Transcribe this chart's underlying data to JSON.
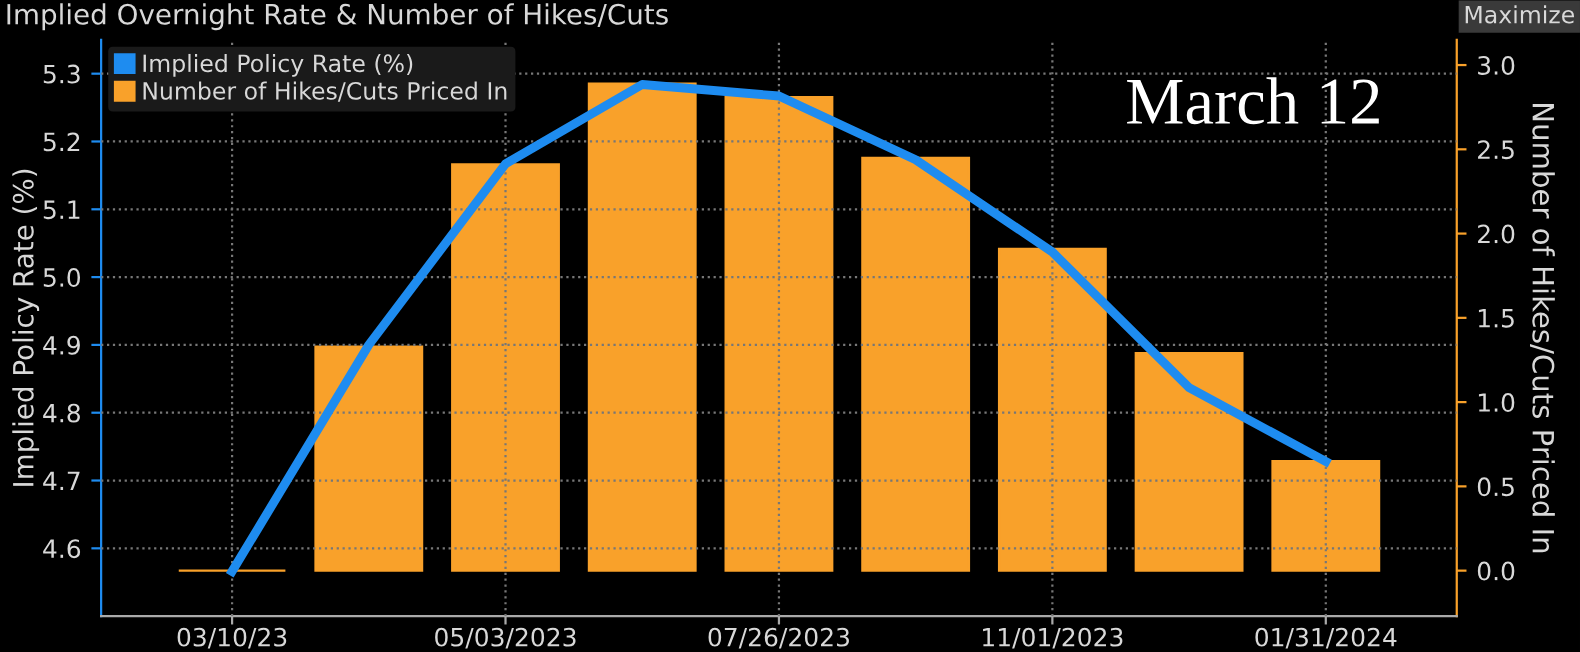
{
  "chart_data": {
    "type": "bar",
    "title": "Implied Overnight Rate & Number of Hikes/Cuts",
    "categories": [
      "03/10/23",
      null,
      "05/03/2023",
      null,
      "07/26/2023",
      null,
      "11/01/2023",
      null,
      "01/31/2024"
    ],
    "series": [
      {
        "name": "Implied Policy Rate (%)",
        "type": "line",
        "color": "#1e8cf0",
        "values": [
          4.566,
          4.9,
          5.167,
          5.284,
          5.267,
          5.173,
          5.037,
          4.837,
          4.728
        ]
      },
      {
        "name": "Number of Hikes/Cuts Priced In",
        "axis": "y2",
        "color": "#f9a12a",
        "values": [
          0,
          1.33,
          2.41,
          2.89,
          2.81,
          2.45,
          1.91,
          1.29,
          0.65
        ]
      }
    ],
    "ylabel": "Implied Policy Rate (%)",
    "y2label": "Number of Hikes/Cuts Priced In",
    "ylim": [
      4.5,
      5.35
    ],
    "yticks": [
      4.6,
      4.7,
      4.8,
      4.9,
      {
        "value": 5.0,
        "label": "5.0"
      },
      5.1,
      5.2,
      5.3
    ],
    "y2lim": [
      -0.27,
      3.15
    ],
    "y2ticks": [
      {
        "value": 0,
        "label": "0.0"
      },
      0.5,
      {
        "value": 1,
        "label": "1.0"
      },
      1.5,
      {
        "value": 2,
        "label": "2.0"
      },
      2.5,
      {
        "value": 3,
        "label": "3.0"
      }
    ],
    "annotations": [
      "March 12",
      "Maximize"
    ],
    "grid": true,
    "legend": "top left",
    "marker": "none",
    "line_style": "solid"
  }
}
